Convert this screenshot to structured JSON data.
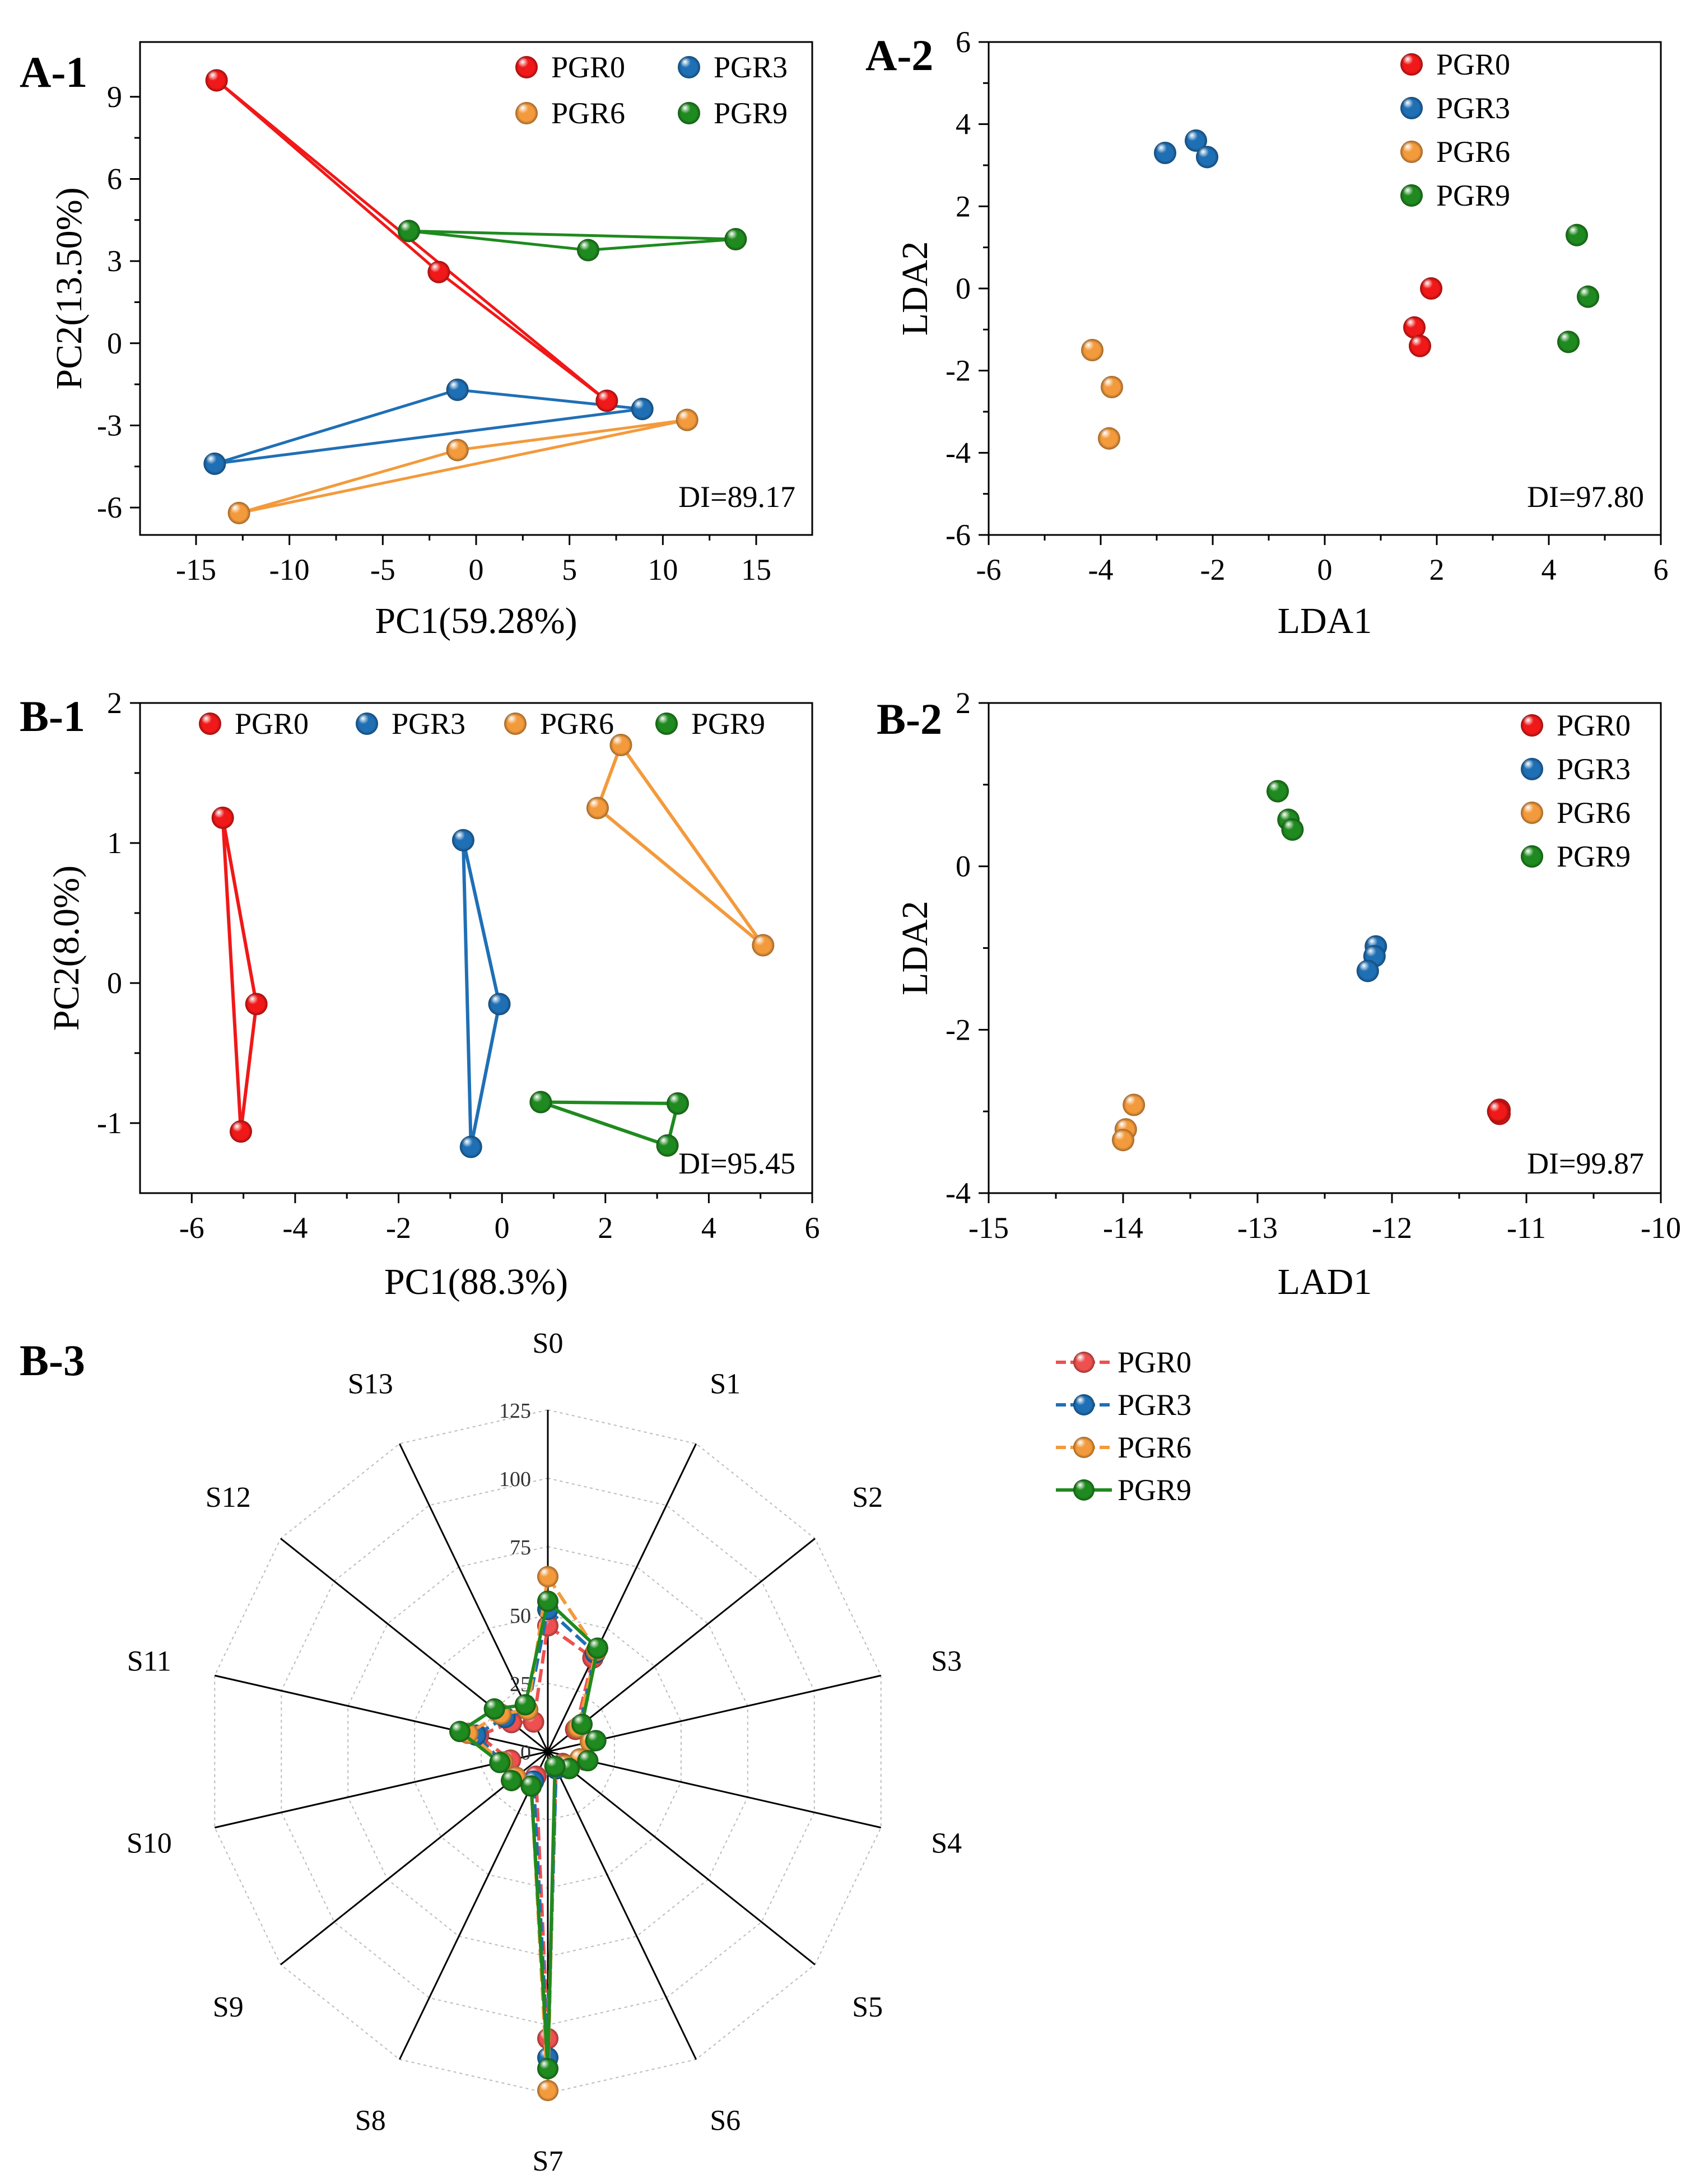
{
  "figure": {
    "colors": {
      "PGR0": "#f01818",
      "PGR3": "#1f6fb5",
      "PGR6": "#f39a3c",
      "PGR9": "#1f8a1f",
      "PGR0_radar": "#ee5050"
    }
  },
  "chart_data": [
    {
      "id": "A1",
      "panel_label": "A-1",
      "type": "scatter",
      "title": "",
      "xlabel": "PC1(59.28%)",
      "ylabel": "PC2(13.50%)",
      "xlim": [
        -18,
        18
      ],
      "ylim": [
        -7,
        11
      ],
      "xticks": [
        -15,
        -10,
        -5,
        0,
        5,
        10,
        15
      ],
      "yticks": [
        -6,
        -3,
        0,
        3,
        6,
        9
      ],
      "xtick_labels": [
        "-15",
        "-10",
        "-5",
        "0",
        "5",
        "10",
        "15"
      ],
      "ytick_labels": [
        "-6",
        "-3",
        "0",
        "3",
        "6",
        "9"
      ],
      "polygons": true,
      "annotation": "DI=89.17",
      "legend": [
        "PGR0",
        "PGR3",
        "PGR6",
        "PGR9"
      ],
      "legend_layout": "two-column-top-right",
      "series": [
        {
          "name": "PGR0",
          "points": [
            [
              -13.9,
              9.6
            ],
            [
              -2,
              2.6
            ],
            [
              7,
              -2.1
            ]
          ]
        },
        {
          "name": "PGR3",
          "points": [
            [
              -14,
              -4.4
            ],
            [
              -1,
              -1.7
            ],
            [
              8.9,
              -2.4
            ]
          ]
        },
        {
          "name": "PGR6",
          "points": [
            [
              -12.7,
              -6.2
            ],
            [
              -1,
              -3.9
            ],
            [
              11.3,
              -2.8
            ]
          ]
        },
        {
          "name": "PGR9",
          "points": [
            [
              -3.6,
              4.1
            ],
            [
              6,
              3.4
            ],
            [
              13.9,
              3.8
            ]
          ]
        }
      ]
    },
    {
      "id": "A2",
      "panel_label": "A-2",
      "type": "scatter",
      "title": "",
      "xlabel": "LDA1",
      "ylabel": "LDA2",
      "xlim": [
        -6,
        6
      ],
      "ylim": [
        -6,
        6
      ],
      "xticks": [
        -6,
        -4,
        -2,
        0,
        2,
        4,
        6
      ],
      "yticks": [
        -6,
        -4,
        -2,
        0,
        2,
        4,
        6
      ],
      "xtick_labels": [
        "-6",
        "-4",
        "-2",
        "0",
        "2",
        "4",
        "6"
      ],
      "ytick_labels": [
        "-6",
        "-4",
        "-2",
        "0",
        "2",
        "4",
        "6"
      ],
      "polygons": false,
      "annotation": "DI=97.80",
      "legend": [
        "PGR0",
        "PGR3",
        "PGR6",
        "PGR9"
      ],
      "legend_layout": "one-column-top-right",
      "series": [
        {
          "name": "PGR0",
          "points": [
            [
              1.9,
              0
            ],
            [
              1.6,
              -0.95
            ],
            [
              1.7,
              -1.4
            ]
          ]
        },
        {
          "name": "PGR3",
          "points": [
            [
              -2.85,
              3.3
            ],
            [
              -2.3,
              3.6
            ],
            [
              -2.1,
              3.2
            ]
          ]
        },
        {
          "name": "PGR6",
          "points": [
            [
              -4.15,
              -1.5
            ],
            [
              -3.8,
              -2.4
            ],
            [
              -3.85,
              -3.65
            ]
          ]
        },
        {
          "name": "PGR9",
          "points": [
            [
              4.5,
              1.3
            ],
            [
              4.7,
              -0.2
            ],
            [
              4.35,
              -1.3
            ]
          ]
        }
      ]
    },
    {
      "id": "B1",
      "panel_label": "B-1",
      "type": "scatter",
      "title": "",
      "xlabel": "PC1(88.3%)",
      "ylabel": "PC2(8.0%)",
      "xlim": [
        -7,
        6
      ],
      "ylim": [
        -1.5,
        2
      ],
      "xticks": [
        -6,
        -4,
        -2,
        0,
        2,
        4,
        6
      ],
      "yticks": [
        -1,
        0,
        1,
        2
      ],
      "xtick_labels": [
        "-6",
        "-4",
        "-2",
        "0",
        "2",
        "4",
        "6"
      ],
      "ytick_labels": [
        "-1",
        "0",
        "1",
        "2"
      ],
      "polygons": true,
      "annotation": "DI=95.45",
      "legend": [
        "PGR0",
        "PGR3",
        "PGR6",
        "PGR9"
      ],
      "legend_layout": "one-row-top",
      "series": [
        {
          "name": "PGR0",
          "points": [
            [
              -5.4,
              1.18
            ],
            [
              -4.75,
              -0.15
            ],
            [
              -5.05,
              -1.06
            ]
          ]
        },
        {
          "name": "PGR3",
          "points": [
            [
              -0.75,
              1.02
            ],
            [
              -0.05,
              -0.15
            ],
            [
              -0.6,
              -1.17
            ]
          ]
        },
        {
          "name": "PGR6",
          "points": [
            [
              2.3,
              1.7
            ],
            [
              1.85,
              1.25
            ],
            [
              5.05,
              0.27
            ]
          ]
        },
        {
          "name": "PGR9",
          "points": [
            [
              0.75,
              -0.85
            ],
            [
              3.4,
              -0.86
            ],
            [
              3.2,
              -1.16
            ]
          ]
        }
      ]
    },
    {
      "id": "B2",
      "panel_label": "B-2",
      "type": "scatter",
      "title": "",
      "xlabel": "LAD1",
      "ylabel": "LDA2",
      "xlim": [
        -15,
        -10
      ],
      "ylim": [
        -4,
        2
      ],
      "xticks": [
        -15,
        -14,
        -13,
        -12,
        -11,
        -10
      ],
      "yticks": [
        -4,
        -2,
        0,
        2
      ],
      "xtick_labels": [
        "-15",
        "-14",
        "-13",
        "-12",
        "-11",
        "-10"
      ],
      "ytick_labels": [
        "-4",
        "-2",
        "0",
        "2"
      ],
      "polygons": false,
      "annotation": "DI=99.87",
      "legend": [
        "PGR0",
        "PGR3",
        "PGR6",
        "PGR9"
      ],
      "legend_layout": "one-column-top-right",
      "series": [
        {
          "name": "PGR0",
          "points": [
            [
              -11.2,
              -2.98
            ],
            [
              -11.2,
              -3.03
            ],
            [
              -11.21,
              -3.0
            ]
          ]
        },
        {
          "name": "PGR3",
          "points": [
            [
              -12.12,
              -0.98
            ],
            [
              -12.13,
              -1.1
            ],
            [
              -12.18,
              -1.28
            ]
          ]
        },
        {
          "name": "PGR6",
          "points": [
            [
              -13.92,
              -2.92
            ],
            [
              -13.98,
              -3.22
            ],
            [
              -14.0,
              -3.35
            ]
          ]
        },
        {
          "name": "PGR9",
          "points": [
            [
              -12.85,
              0.92
            ],
            [
              -12.77,
              0.57
            ],
            [
              -12.74,
              0.45
            ]
          ]
        }
      ]
    },
    {
      "id": "B3",
      "panel_label": "B-3",
      "type": "radar",
      "title": "",
      "axes": [
        "S0",
        "S1",
        "S2",
        "S3",
        "S4",
        "S5",
        "S6",
        "S7",
        "S8",
        "S9",
        "S10",
        "S11",
        "S12",
        "S13"
      ],
      "rmax": 125,
      "rticks": [
        0,
        25,
        50,
        75,
        100,
        125
      ],
      "rtick_labels": [
        "0",
        "25",
        "50",
        "75",
        "100",
        "125"
      ],
      "legend": [
        "PGR0",
        "PGR3",
        "PGR6",
        "PGR9"
      ],
      "legend_layout": "one-column-right",
      "series": [
        {
          "name": "PGR0",
          "values": [
            46,
            38,
            13,
            16,
            14,
            7,
            7,
            105,
            10,
            17,
            14,
            26,
            17,
            12
          ]
        },
        {
          "name": "PGR3",
          "values": [
            52,
            40,
            15,
            18,
            14,
            8,
            7,
            112,
            12,
            15,
            17,
            27,
            20,
            17
          ]
        },
        {
          "name": "PGR6",
          "values": [
            64,
            41,
            14,
            16,
            12,
            8,
            6,
            124,
            14,
            15,
            17,
            30,
            22,
            17
          ]
        },
        {
          "name": "PGR9",
          "values": [
            55,
            42,
            16,
            18,
            15,
            10,
            6,
            116,
            14,
            17,
            18,
            33,
            25,
            19
          ]
        }
      ]
    }
  ]
}
